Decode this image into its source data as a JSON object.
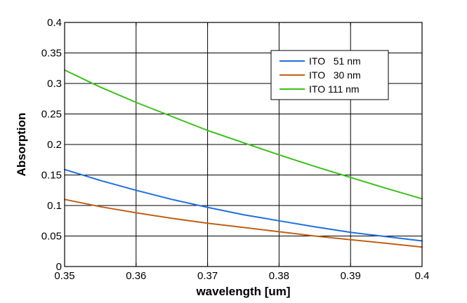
{
  "chart_data": {
    "type": "line",
    "title": "",
    "xlabel": "wavelength [um]",
    "ylabel": "Absorption",
    "xlim": [
      0.35,
      0.4
    ],
    "ylim": [
      0,
      0.4
    ],
    "xticks": [
      0.35,
      0.36,
      0.37,
      0.38,
      0.39,
      0.4
    ],
    "xtick_labels": [
      "0.35",
      "0.36",
      "0.37",
      "0.38",
      "0.39",
      "0.4"
    ],
    "yticks": [
      0,
      0.05,
      0.1,
      0.15,
      0.2,
      0.25,
      0.3,
      0.35,
      0.4
    ],
    "ytick_labels": [
      "0",
      "0.05",
      "0.1",
      "0.15",
      "0.2",
      "0.25",
      "0.3",
      "0.35",
      "0.4"
    ],
    "grid": true,
    "legend_position": "top-right",
    "series": [
      {
        "name": "ITO   51 nm",
        "color": "#1f6fe0",
        "x": [
          0.35,
          0.355,
          0.36,
          0.365,
          0.37,
          0.375,
          0.38,
          0.385,
          0.39,
          0.395,
          0.4
        ],
        "y": [
          0.159,
          0.141,
          0.125,
          0.11,
          0.097,
          0.085,
          0.075,
          0.065,
          0.056,
          0.049,
          0.042
        ]
      },
      {
        "name": "ITO   30 nm",
        "color": "#c0601a",
        "x": [
          0.35,
          0.355,
          0.36,
          0.365,
          0.37,
          0.375,
          0.38,
          0.385,
          0.39,
          0.395,
          0.4
        ],
        "y": [
          0.11,
          0.098,
          0.088,
          0.079,
          0.071,
          0.064,
          0.057,
          0.05,
          0.044,
          0.038,
          0.032
        ]
      },
      {
        "name": "ITO 111 nm",
        "color": "#3cc01a",
        "x": [
          0.35,
          0.355,
          0.36,
          0.365,
          0.37,
          0.375,
          0.38,
          0.385,
          0.39,
          0.395,
          0.4
        ],
        "y": [
          0.322,
          0.294,
          0.269,
          0.246,
          0.223,
          0.203,
          0.183,
          0.164,
          0.146,
          0.128,
          0.111
        ]
      }
    ]
  }
}
